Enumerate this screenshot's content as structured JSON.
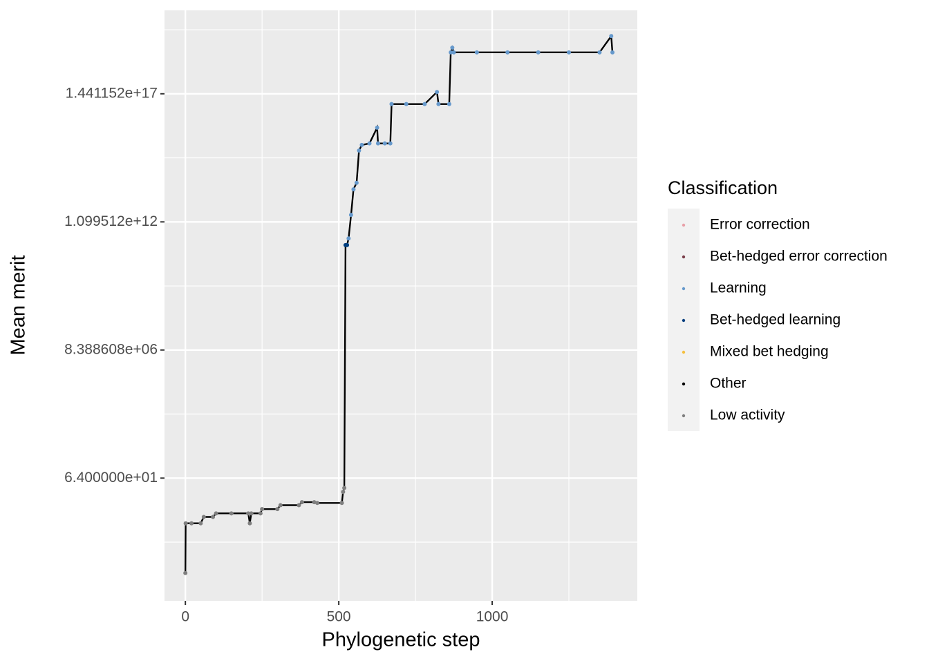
{
  "chart_data": {
    "type": "line",
    "x_label": "Phylogenetic step",
    "y_label": "Mean merit",
    "log_y": true,
    "grid": true,
    "xlim": [
      -68,
      1473
    ],
    "xticks": [
      0,
      500,
      1000
    ],
    "xminor_ticks": [
      250,
      750,
      1250
    ],
    "ylim": [
      0.0008,
      3.1e+20
    ],
    "yticks": [
      {
        "value": 64,
        "label": "6.400000e+01"
      },
      {
        "value": 8388608,
        "label": "8.388608e+06"
      },
      {
        "value": 1099511627776,
        "label": "1.099512e+12"
      },
      {
        "value": 144115188075855872,
        "label": "1.441152e+17"
      }
    ],
    "yminor_ticks": [
      0.1768,
      23170.5,
      3037000500,
      398000000000000.0,
      5.22e+19
    ],
    "line_color": "#000000",
    "legend_title": "Classification",
    "legend": [
      {
        "name": "Error correction",
        "color": "#E8A0A8"
      },
      {
        "name": "Bet-hedged error correction",
        "color": "#7A3F4A"
      },
      {
        "name": "Learning",
        "color": "#6699CC"
      },
      {
        "name": "Bet-hedged learning",
        "color": "#003F7F"
      },
      {
        "name": "Mixed bet hedging",
        "color": "#F5C040"
      },
      {
        "name": "Other",
        "color": "#000000"
      },
      {
        "name": "Low activity",
        "color": "#7F7F7F"
      }
    ],
    "x": [
      0,
      1,
      20,
      50,
      60,
      90,
      100,
      150,
      205,
      210,
      215,
      245,
      250,
      300,
      310,
      370,
      380,
      420,
      430,
      510,
      514,
      518,
      522,
      527,
      532,
      540,
      548,
      558,
      566,
      575,
      600,
      625,
      628,
      650,
      668,
      672,
      720,
      780,
      820,
      825,
      860,
      865,
      870,
      875,
      950,
      1050,
      1150,
      1250,
      1350,
      1388,
      1392
    ],
    "values": [
      0.0103,
      1.0,
      1.0,
      1.0,
      1.8,
      1.8,
      2.5,
      2.5,
      2.5,
      1.0,
      2.5,
      2.5,
      3.7,
      3.7,
      5.3,
      5.3,
      7.0,
      7.0,
      6.5,
      6.5,
      18,
      26,
      130000000000.0,
      130000000000.0,
      240000000000.0,
      2100000000000.0,
      22000000000000.0,
      40000000000000.0,
      780000000000000.0,
      1300000000000000.0,
      1500000000000000.0,
      6400000000000000.0,
      1500000000000000.0,
      1500000000000000.0,
      1500000000000000.0,
      5.6e+16,
      5.6e+16,
      5.6e+16,
      1.7e+17,
      5.6e+16,
      5.6e+16,
      6.5e+18,
      1e+19,
      6.5e+18,
      6.5e+18,
      6.5e+18,
      6.5e+18,
      6.5e+18,
      6.5e+18,
      2.9e+19,
      6.5e+18
    ],
    "classification": [
      "Low activity",
      "Low activity",
      "Low activity",
      "Low activity",
      "Low activity",
      "Low activity",
      "Low activity",
      "Low activity",
      "Low activity",
      "Low activity",
      "Low activity",
      "Low activity",
      "Low activity",
      "Low activity",
      "Low activity",
      "Low activity",
      "Low activity",
      "Low activity",
      "Low activity",
      "Low activity",
      "Low activity",
      "Low activity",
      "Bet-hedged learning",
      "Bet-hedged learning",
      "Learning",
      "Learning",
      "Learning",
      "Learning",
      "Learning",
      "Learning",
      "Learning",
      "Learning",
      "Learning",
      "Learning",
      "Learning",
      "Learning",
      "Learning",
      "Learning",
      "Learning",
      "Learning",
      "Learning",
      "Learning",
      "Learning",
      "Learning",
      "Learning",
      "Learning",
      "Learning",
      "Learning",
      "Learning",
      "Learning",
      "Learning"
    ]
  }
}
